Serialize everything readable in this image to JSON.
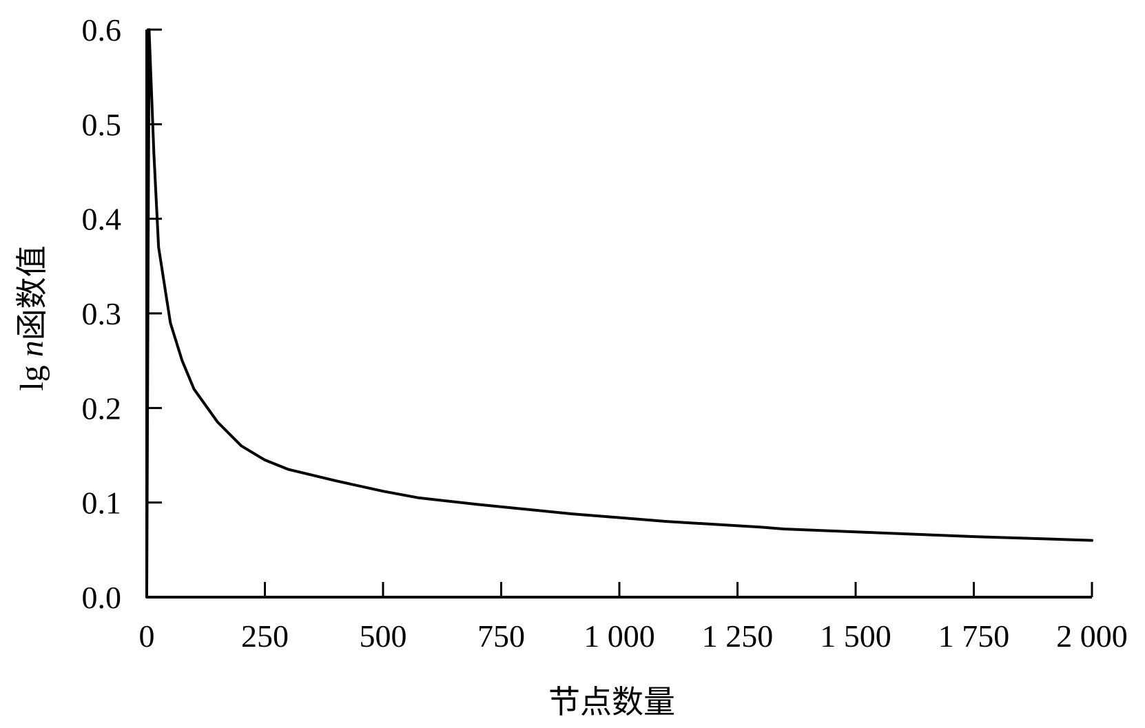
{
  "chart_data": {
    "type": "line",
    "xlabel": "节点数量",
    "ylabel": {
      "prefix": "lg ",
      "italic": "n",
      "suffix": "函数值"
    },
    "xlim": [
      0,
      2000
    ],
    "ylim": [
      0,
      0.6
    ],
    "x_ticks": [
      0,
      250,
      500,
      750,
      1000,
      1250,
      1500,
      1750,
      2000
    ],
    "x_tick_labels": [
      "0",
      "250",
      "500",
      "750",
      "1 000",
      "1 250",
      "1 500",
      "1 750",
      "2 000"
    ],
    "y_ticks": [
      0,
      0.1,
      0.2,
      0.3,
      0.4,
      0.5,
      0.6
    ],
    "y_tick_labels": [
      "0.0",
      "0.1",
      "0.2",
      "0.3",
      "0.4",
      "0.5",
      "0.6"
    ],
    "grid": false,
    "legend": "none",
    "series": [
      {
        "color": "#000000",
        "x": [
          0,
          5,
          15,
          25,
          50,
          75,
          100,
          150,
          200,
          250,
          300,
          400,
          500,
          575,
          700,
          900,
          1100,
          1300,
          1350,
          1500,
          1750,
          2000
        ],
        "y": [
          0.0,
          0.6,
          0.47,
          0.37,
          0.29,
          0.25,
          0.22,
          0.185,
          0.16,
          0.145,
          0.135,
          0.123,
          0.112,
          0.105,
          0.098,
          0.088,
          0.08,
          0.074,
          0.072,
          0.069,
          0.064,
          0.06
        ]
      }
    ]
  }
}
